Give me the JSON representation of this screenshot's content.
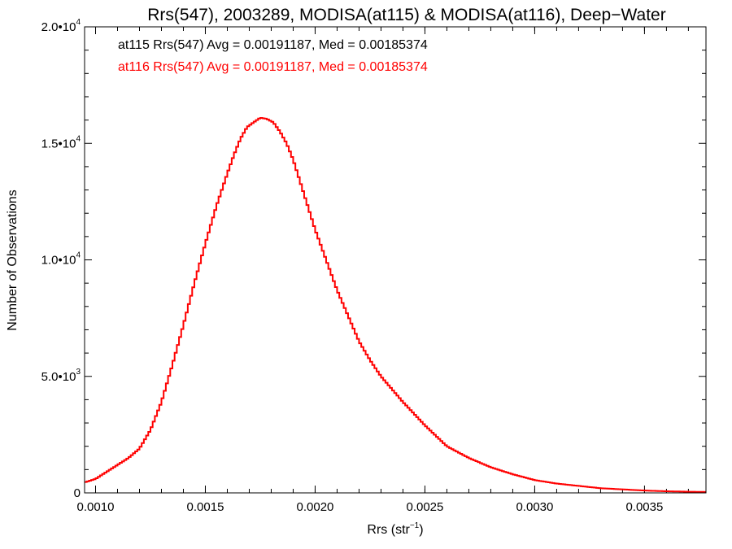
{
  "chart_data": {
    "type": "line",
    "title": "Rrs(547), 2003289, MODISA(at115) & MODISA(at116), Deep−Water",
    "xlabel": "Rrs (str",
    "xlabel_sup": "−1",
    "xlabel_end": ")",
    "ylabel": "Number of Observations",
    "xlim": [
      0.00095,
      0.00378
    ],
    "ylim": [
      0,
      20000
    ],
    "grid": false,
    "xticks": [
      {
        "value": 0.001,
        "label": "0.0010"
      },
      {
        "value": 0.0015,
        "label": "0.0015"
      },
      {
        "value": 0.002,
        "label": "0.0020"
      },
      {
        "value": 0.0025,
        "label": "0.0025"
      },
      {
        "value": 0.003,
        "label": "0.0030"
      },
      {
        "value": 0.0035,
        "label": "0.0035"
      }
    ],
    "yticks": [
      {
        "value": 0,
        "mant": "0",
        "exp": ""
      },
      {
        "value": 5000,
        "mant": "5.0•10",
        "exp": "3"
      },
      {
        "value": 10000,
        "mant": "1.0•10",
        "exp": "4"
      },
      {
        "value": 15000,
        "mant": "1.5•10",
        "exp": "4"
      },
      {
        "value": 20000,
        "mant": "2.0•10",
        "exp": "4"
      }
    ],
    "annotations": [
      {
        "text": "at115 Rrs(547) Avg = 0.00191187, Med = 0.00185374",
        "color": "#000000"
      },
      {
        "text": "at116 Rrs(547) Avg = 0.00191187, Med = 0.00185374",
        "color": "#ff0000"
      }
    ],
    "series": [
      {
        "color": "#ff0000",
        "x": [
          0.00095,
          0.001,
          0.00105,
          0.0011,
          0.00115,
          0.0012,
          0.00125,
          0.0013,
          0.00135,
          0.0014,
          0.00145,
          0.0015,
          0.00155,
          0.0016,
          0.00163,
          0.00166,
          0.00169,
          0.00172,
          0.00175,
          0.00178,
          0.00181,
          0.00184,
          0.00187,
          0.0019,
          0.00195,
          0.002,
          0.00205,
          0.0021,
          0.00215,
          0.0022,
          0.00225,
          0.0023,
          0.0024,
          0.0025,
          0.0026,
          0.0027,
          0.0028,
          0.0029,
          0.003,
          0.0031,
          0.0032,
          0.0033,
          0.0034,
          0.0035,
          0.0036,
          0.0037,
          0.00378
        ],
        "y": [
          450,
          600,
          900,
          1200,
          1500,
          1900,
          2700,
          3900,
          5500,
          7200,
          9000,
          10700,
          12300,
          13700,
          14500,
          15200,
          15700,
          15900,
          16100,
          16050,
          15900,
          15500,
          15000,
          14300,
          12800,
          11300,
          10000,
          8700,
          7600,
          6500,
          5700,
          5000,
          3900,
          2900,
          2000,
          1500,
          1100,
          800,
          550,
          400,
          300,
          200,
          150,
          100,
          70,
          50,
          40
        ]
      }
    ]
  }
}
